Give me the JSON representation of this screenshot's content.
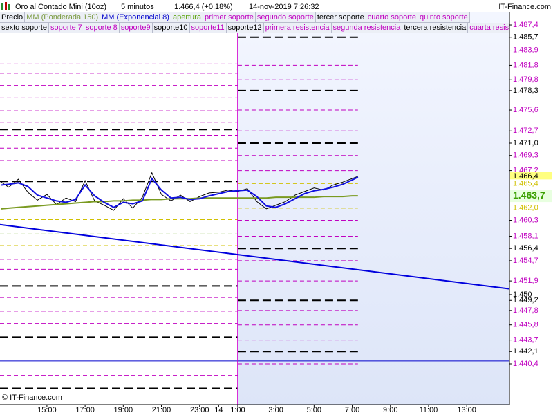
{
  "chart_data": {
    "type": "line",
    "title": "Oro al Contado Mini (10oz)",
    "interval": "5 minutos",
    "quote": "1.466,4 (+0,18%)",
    "timestamp": "14-nov-2019 7:26:32",
    "brand": "IT-Finance.com",
    "copyright": "© IT-Finance.com",
    "legend_rows": [
      [
        {
          "name": "Precio",
          "color": "#000000"
        },
        {
          "name": "MM (Ponderada 150)",
          "color": "#7a9a40"
        },
        {
          "name": "MM (Exponencial 8)",
          "color": "#0000cc"
        },
        {
          "name": "apertura",
          "color": "#55a000"
        },
        {
          "name": "primer soporte",
          "color": "#c000c0"
        },
        {
          "name": "segundo soporte",
          "color": "#c000c0"
        },
        {
          "name": "tercer soporte",
          "color": "#000000"
        },
        {
          "name": "cuarto soporte",
          "color": "#c000c0"
        },
        {
          "name": "quinto soporte",
          "color": "#c000c0"
        }
      ],
      [
        {
          "name": "sexto soporte",
          "color": "#000000"
        },
        {
          "name": "soporte 7",
          "color": "#c000c0"
        },
        {
          "name": "soporte 8",
          "color": "#c000c0"
        },
        {
          "name": "soporte9",
          "color": "#c000c0"
        },
        {
          "name": "soporte10",
          "color": "#000000"
        },
        {
          "name": "soporte11",
          "color": "#c000c0"
        },
        {
          "name": "soporte12",
          "color": "#000000"
        },
        {
          "name": "primera resistencia",
          "color": "#c000c0"
        },
        {
          "name": "segunda resistencia",
          "color": "#c000c0"
        },
        {
          "name": "tercera resistencia",
          "color": "#000000"
        },
        {
          "name": "cuarta resis",
          "color": "#c000c0"
        }
      ]
    ],
    "xlim": [
      12.54,
      39.24
    ],
    "ylim": [
      1434.74,
      1489.13
    ],
    "xticks": [
      {
        "value": 15,
        "label": "15:00"
      },
      {
        "value": 17,
        "label": "17:00"
      },
      {
        "value": 19,
        "label": "19:00"
      },
      {
        "value": 21,
        "label": "21:00"
      },
      {
        "value": 23,
        "label": "23:00"
      },
      {
        "value": 24,
        "label": "14"
      },
      {
        "value": 25,
        "label": "1:00"
      },
      {
        "value": 27,
        "label": "3:00"
      },
      {
        "value": 29,
        "label": "5:00"
      },
      {
        "value": 31,
        "label": "7:00"
      },
      {
        "value": 33,
        "label": "9:00"
      },
      {
        "value": 35,
        "label": "11:00"
      },
      {
        "value": 37,
        "label": "13:00"
      }
    ],
    "yticks": [
      {
        "value": 1487.4,
        "label": "1.487,4"
      },
      {
        "value": 1485.7,
        "label": "1.485,7"
      },
      {
        "value": 1483.9,
        "label": "1.483,9"
      },
      {
        "value": 1481.8,
        "label": "1.481,8"
      },
      {
        "value": 1479.8,
        "label": "1.479,8"
      },
      {
        "value": 1478.3,
        "label": "1.478,3"
      },
      {
        "value": 1475.6,
        "label": "1.475,6"
      },
      {
        "value": 1472.7,
        "label": "1.472,7"
      },
      {
        "value": 1471.0,
        "label": "1.471,0"
      },
      {
        "value": 1469.3,
        "label": "1.469,3"
      },
      {
        "value": 1467.2,
        "label": "1.467,2"
      },
      {
        "value": 1460.3,
        "label": "1.460,3"
      },
      {
        "value": 1458.1,
        "label": "1.458,1"
      },
      {
        "value": 1456.4,
        "label": "1.456,4"
      },
      {
        "value": 1454.7,
        "label": "1.454,7"
      },
      {
        "value": 1451.9,
        "label": "1.451,9"
      },
      {
        "value": 1450,
        "label": "1.450"
      },
      {
        "value": 1449.2,
        "label": "1.449,2"
      },
      {
        "value": 1447.8,
        "label": "1.447,8"
      },
      {
        "value": 1445.8,
        "label": "1.445,8"
      },
      {
        "value": 1443.7,
        "label": "1.443,7"
      },
      {
        "value": 1442.1,
        "label": "1.442,1"
      },
      {
        "value": 1440.4,
        "label": "1.440,4"
      }
    ],
    "ytick_colors": [
      "#c000c0",
      "#000000",
      "#c000c0",
      "#c000c0",
      "#c000c0",
      "#000000",
      "#c000c0",
      "#c000c0",
      "#000000",
      "#c000c0",
      "#c000c0",
      "#c000c0",
      "#c000c0",
      "#000000",
      "#c000c0",
      "#c000c0",
      "#000000",
      "#000000",
      "#c000c0",
      "#c000c0",
      "#c000c0",
      "#000000",
      "#c000c0"
    ],
    "markers": [
      {
        "value": 1466.4,
        "label": "1.466,4",
        "color": "#000000",
        "background": "#ffff80"
      },
      {
        "value": 1465.4,
        "label": "1.465,4",
        "color": "#d0c000",
        "background": "#ffffff"
      },
      {
        "value": 1463.7,
        "label": "1.463,7",
        "color": "#3aa000",
        "background": "#e8ffe0"
      },
      {
        "value": 1462.0,
        "label": "1.462,0",
        "color": "#d0c000",
        "background": "#ffffff"
      }
    ],
    "x": [
      12.6,
      13,
      13.5,
      14,
      14.5,
      15,
      15.5,
      16,
      16.5,
      17,
      17.5,
      18,
      18.5,
      19,
      19.5,
      20,
      20.5,
      21,
      21.5,
      22,
      22.5,
      23,
      23.5,
      24,
      24.5,
      25,
      25.5,
      26,
      26.5,
      27,
      27.5,
      28,
      28.5,
      29,
      29.5,
      30,
      30.5,
      31,
      31.3
    ],
    "series": [
      {
        "name": "Precio",
        "color": "#000000",
        "values": [
          1465.6,
          1464.9,
          1466.0,
          1464.2,
          1463.1,
          1463.9,
          1462.5,
          1463.4,
          1462.9,
          1465.8,
          1463.0,
          1462.4,
          1461.7,
          1463.3,
          1462.0,
          1463.5,
          1466.9,
          1463.9,
          1463.0,
          1463.8,
          1462.9,
          1463.6,
          1464.1,
          1464.2,
          1464.5,
          1464.3,
          1464.7,
          1462.9,
          1461.9,
          1462.4,
          1462.9,
          1463.8,
          1464.3,
          1464.8,
          1464.5,
          1465.2,
          1465.6,
          1466.1,
          1466.4
        ]
      },
      {
        "name": "MM (Ponderada 150)",
        "color": "#7a9a20",
        "values": [
          1461.9,
          1462.0,
          1462.1,
          1462.2,
          1462.3,
          1462.4,
          1462.5,
          1462.6,
          1462.7,
          1462.8,
          1462.9,
          1462.9,
          1463.0,
          1463.0,
          1463.1,
          1463.1,
          1463.2,
          1463.2,
          1463.3,
          1463.3,
          1463.3,
          1463.4,
          1463.4,
          1463.4,
          1463.4,
          1463.4,
          1463.4,
          1463.4,
          1463.4,
          1463.5,
          1463.5,
          1463.5,
          1463.5,
          1463.5,
          1463.6,
          1463.6,
          1463.6,
          1463.7,
          1463.7
        ]
      },
      {
        "name": "MM (Exponencial 8)",
        "color": "#1010e0",
        "values": [
          1465.2,
          1465.3,
          1465.5,
          1465.0,
          1463.8,
          1463.4,
          1463.0,
          1462.8,
          1463.2,
          1465.2,
          1463.7,
          1462.8,
          1462.1,
          1462.8,
          1462.6,
          1463.0,
          1466.1,
          1464.5,
          1463.4,
          1463.5,
          1463.2,
          1463.3,
          1463.7,
          1464.0,
          1464.3,
          1464.4,
          1464.5,
          1463.6,
          1462.3,
          1462.1,
          1462.6,
          1463.3,
          1464.0,
          1464.4,
          1464.6,
          1464.9,
          1465.3,
          1465.9,
          1466.3
        ]
      }
    ],
    "levels": [
      {
        "value": 1472.9,
        "color": "#000000",
        "style": "bold",
        "x": [
          12.54,
          25
        ]
      },
      {
        "value": 1465.7,
        "color": "#000000",
        "style": "bold",
        "x": [
          12.54,
          25
        ]
      },
      {
        "value": 1451.2,
        "color": "#000000",
        "style": "bold",
        "x": [
          12.54,
          25
        ]
      },
      {
        "value": 1444.1,
        "color": "#000000",
        "style": "bold",
        "x": [
          12.54,
          25
        ]
      },
      {
        "value": 1437.0,
        "color": "#000000",
        "style": "bold",
        "x": [
          12.54,
          25
        ]
      },
      {
        "value": 1482.0,
        "color": "#c000c0",
        "style": "dashed",
        "x": [
          12.54,
          25
        ]
      },
      {
        "value": 1480.7,
        "color": "#c000c0",
        "style": "dashed",
        "x": [
          12.54,
          25
        ]
      },
      {
        "value": 1479.0,
        "color": "#c000c0",
        "style": "dashed",
        "x": [
          12.54,
          25
        ]
      },
      {
        "value": 1477.3,
        "color": "#c000c0",
        "style": "dashed",
        "x": [
          12.54,
          25
        ]
      },
      {
        "value": 1475.5,
        "color": "#c000c0",
        "style": "dashed",
        "x": [
          12.54,
          25
        ]
      },
      {
        "value": 1473.9,
        "color": "#c000c0",
        "style": "dashed",
        "x": [
          12.54,
          25
        ]
      },
      {
        "value": 1472.1,
        "color": "#c000c0",
        "style": "dashed",
        "x": [
          12.54,
          25
        ]
      },
      {
        "value": 1470.3,
        "color": "#c000c0",
        "style": "dashed",
        "x": [
          12.54,
          25
        ]
      },
      {
        "value": 1468.6,
        "color": "#c000c0",
        "style": "dashed",
        "x": [
          12.54,
          25
        ]
      },
      {
        "value": 1467.4,
        "color": "#c000c0",
        "style": "dashed",
        "x": [
          12.54,
          25
        ]
      },
      {
        "value": 1454.9,
        "color": "#c000c0",
        "style": "dashed",
        "x": [
          12.54,
          25
        ]
      },
      {
        "value": 1453.5,
        "color": "#c000c0",
        "style": "dashed",
        "x": [
          12.54,
          25
        ]
      },
      {
        "value": 1449.6,
        "color": "#c000c0",
        "style": "dashed",
        "x": [
          12.54,
          25
        ]
      },
      {
        "value": 1447.7,
        "color": "#c000c0",
        "style": "dashed",
        "x": [
          12.54,
          25
        ]
      },
      {
        "value": 1446.0,
        "color": "#c000c0",
        "style": "dashed",
        "x": [
          12.54,
          25
        ]
      },
      {
        "value": 1438.8,
        "color": "#c000c0",
        "style": "dashed",
        "x": [
          12.54,
          25
        ]
      },
      {
        "value": 1460.4,
        "color": "#d0c000",
        "style": "dashed",
        "x": [
          12.54,
          25
        ]
      },
      {
        "value": 1458.4,
        "color": "#55a000",
        "style": "dashed",
        "x": [
          12.54,
          25
        ]
      },
      {
        "value": 1456.8,
        "color": "#d0c000",
        "style": "dashed",
        "x": [
          12.54,
          25
        ]
      },
      {
        "value": 1485.7,
        "color": "#000000",
        "style": "bold",
        "x": [
          25,
          31.3
        ]
      },
      {
        "value": 1478.3,
        "color": "#000000",
        "style": "bold",
        "x": [
          25,
          31.3
        ]
      },
      {
        "value": 1471.0,
        "color": "#000000",
        "style": "bold",
        "x": [
          25,
          31.3
        ]
      },
      {
        "value": 1456.4,
        "color": "#000000",
        "style": "bold",
        "x": [
          25,
          31.3
        ]
      },
      {
        "value": 1449.2,
        "color": "#000000",
        "style": "bold",
        "x": [
          25,
          31.3
        ]
      },
      {
        "value": 1442.1,
        "color": "#000000",
        "style": "bold",
        "x": [
          25,
          31.3
        ]
      },
      {
        "value": 1483.9,
        "color": "#c000c0",
        "style": "dashed",
        "x": [
          25,
          31.3
        ]
      },
      {
        "value": 1481.8,
        "color": "#c000c0",
        "style": "dashed",
        "x": [
          25,
          31.3
        ]
      },
      {
        "value": 1479.8,
        "color": "#c000c0",
        "style": "dashed",
        "x": [
          25,
          31.3
        ]
      },
      {
        "value": 1475.6,
        "color": "#c000c0",
        "style": "dashed",
        "x": [
          25,
          31.3
        ]
      },
      {
        "value": 1472.7,
        "color": "#c000c0",
        "style": "dashed",
        "x": [
          25,
          31.3
        ]
      },
      {
        "value": 1469.3,
        "color": "#c000c0",
        "style": "dashed",
        "x": [
          25,
          31.3
        ]
      },
      {
        "value": 1467.2,
        "color": "#c000c0",
        "style": "dashed",
        "x": [
          25,
          31.3
        ]
      },
      {
        "value": 1460.3,
        "color": "#c000c0",
        "style": "dashed",
        "x": [
          25,
          31.3
        ]
      },
      {
        "value": 1458.1,
        "color": "#c000c0",
        "style": "dashed",
        "x": [
          25,
          31.3
        ]
      },
      {
        "value": 1454.7,
        "color": "#c000c0",
        "style": "dashed",
        "x": [
          25,
          31.3
        ]
      },
      {
        "value": 1451.9,
        "color": "#c000c0",
        "style": "dashed",
        "x": [
          25,
          31.3
        ]
      },
      {
        "value": 1447.8,
        "color": "#c000c0",
        "style": "dashed",
        "x": [
          25,
          31.3
        ]
      },
      {
        "value": 1445.8,
        "color": "#c000c0",
        "style": "dashed",
        "x": [
          25,
          31.3
        ]
      },
      {
        "value": 1443.7,
        "color": "#c000c0",
        "style": "dashed",
        "x": [
          25,
          31.3
        ]
      },
      {
        "value": 1440.4,
        "color": "#c000c0",
        "style": "dashed",
        "x": [
          25,
          31.3
        ]
      },
      {
        "value": 1465.4,
        "color": "#d0c000",
        "style": "dashed",
        "x": [
          25,
          31.3
        ]
      },
      {
        "value": 1462.0,
        "color": "#d0c000",
        "style": "dashed",
        "x": [
          25,
          31.3
        ]
      },
      {
        "value": 1441.5,
        "color": "#0000cc",
        "style": "solid",
        "x": [
          12.54,
          39.24
        ]
      },
      {
        "value": 1440.8,
        "color": "#0000cc",
        "style": "solid",
        "x": [
          12.54,
          39.24
        ]
      }
    ],
    "trendline": {
      "color": "#0000dd",
      "x": [
        12.54,
        39.24
      ],
      "values": [
        1459.7,
        1450.8
      ]
    },
    "session_start": 25,
    "session_color": "#d000d0"
  }
}
